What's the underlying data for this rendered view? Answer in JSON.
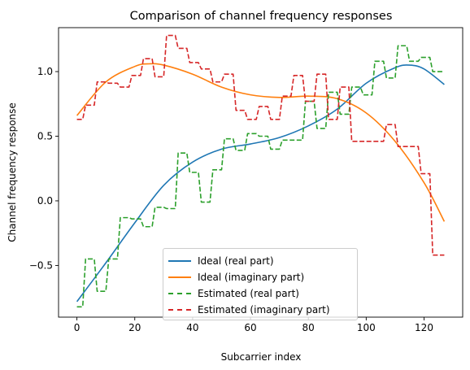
{
  "chart_data": {
    "type": "line",
    "title": "Comparison of channel frequency responses",
    "xlabel": "Subcarrier index",
    "ylabel": "Channel frequency response",
    "xlim": [
      -6.35,
      133.35
    ],
    "ylim": [
      -0.9,
      1.34
    ],
    "xticks": [
      0,
      20,
      40,
      60,
      80,
      100,
      120
    ],
    "yticks": [
      -0.5,
      0.0,
      0.5,
      1.0
    ],
    "ytick_labels": [
      "−0.5",
      "0.0",
      "0.5",
      "1.0"
    ],
    "grid": false,
    "legend_position": "lower center",
    "series": [
      {
        "name": "Ideal (real part)",
        "color": "#1f77b4",
        "style": "solid",
        "x": [
          0,
          10,
          20,
          30,
          40,
          50,
          60,
          70,
          80,
          90,
          100,
          110,
          115,
          120,
          127
        ],
        "y": [
          -0.78,
          -0.48,
          -0.17,
          0.12,
          0.3,
          0.4,
          0.44,
          0.49,
          0.58,
          0.71,
          0.91,
          1.03,
          1.05,
          1.02,
          0.9
        ]
      },
      {
        "name": "Ideal (imaginary part)",
        "color": "#ff7f0e",
        "style": "solid",
        "x": [
          0,
          10,
          20,
          25,
          30,
          40,
          50,
          60,
          70,
          80,
          90,
          100,
          110,
          120,
          127
        ],
        "y": [
          0.66,
          0.92,
          1.04,
          1.06,
          1.05,
          0.98,
          0.88,
          0.82,
          0.8,
          0.81,
          0.79,
          0.68,
          0.46,
          0.14,
          -0.16
        ]
      },
      {
        "name": "Estimated (real part)",
        "color": "#2ca02c",
        "style": "dashed",
        "x": [
          0,
          2,
          3,
          6,
          7,
          10,
          11,
          14,
          15,
          18,
          19,
          22,
          23,
          26,
          27,
          30,
          31,
          34,
          35,
          38,
          39,
          42,
          43,
          46,
          47,
          50,
          51,
          54,
          55,
          58,
          59,
          62,
          63,
          66,
          67,
          70,
          71,
          74,
          75,
          78,
          79,
          82,
          83,
          86,
          87,
          90,
          91,
          94,
          95,
          98,
          99,
          102,
          103,
          106,
          107,
          110,
          111,
          114,
          115,
          118,
          119,
          122,
          123,
          127
        ],
        "y": [
          -0.82,
          -0.82,
          -0.45,
          -0.45,
          -0.7,
          -0.7,
          -0.45,
          -0.45,
          -0.13,
          -0.13,
          -0.14,
          -0.14,
          -0.2,
          -0.2,
          -0.05,
          -0.05,
          -0.06,
          -0.06,
          0.37,
          0.37,
          0.22,
          0.22,
          -0.01,
          -0.01,
          0.24,
          0.24,
          0.48,
          0.48,
          0.39,
          0.39,
          0.52,
          0.52,
          0.5,
          0.5,
          0.4,
          0.4,
          0.47,
          0.47,
          0.47,
          0.47,
          0.77,
          0.77,
          0.56,
          0.56,
          0.84,
          0.84,
          0.67,
          0.67,
          0.88,
          0.88,
          0.82,
          0.82,
          1.08,
          1.08,
          0.95,
          0.95,
          1.2,
          1.2,
          1.08,
          1.08,
          1.11,
          1.11,
          1.0,
          1.0
        ]
      },
      {
        "name": "Estimated (imaginary part)",
        "color": "#d62728",
        "style": "dashed",
        "x": [
          0,
          2,
          3,
          6,
          7,
          10,
          11,
          14,
          15,
          18,
          19,
          22,
          23,
          26,
          27,
          30,
          31,
          34,
          35,
          38,
          39,
          42,
          43,
          46,
          47,
          50,
          51,
          54,
          55,
          58,
          59,
          62,
          63,
          66,
          67,
          70,
          71,
          74,
          75,
          78,
          79,
          82,
          83,
          86,
          87,
          90,
          91,
          94,
          95,
          98,
          99,
          102,
          103,
          106,
          107,
          110,
          111,
          114,
          115,
          118,
          119,
          122,
          123,
          127
        ],
        "y": [
          0.63,
          0.63,
          0.74,
          0.74,
          0.92,
          0.92,
          0.91,
          0.91,
          0.88,
          0.88,
          0.97,
          0.97,
          1.1,
          1.1,
          0.96,
          0.96,
          1.28,
          1.28,
          1.18,
          1.18,
          1.07,
          1.07,
          1.02,
          1.02,
          0.92,
          0.92,
          0.98,
          0.98,
          0.7,
          0.7,
          0.63,
          0.63,
          0.73,
          0.73,
          0.63,
          0.63,
          0.81,
          0.81,
          0.97,
          0.97,
          0.77,
          0.77,
          0.98,
          0.98,
          0.63,
          0.63,
          0.88,
          0.88,
          0.46,
          0.46,
          0.46,
          0.46,
          0.46,
          0.46,
          0.59,
          0.59,
          0.42,
          0.42,
          0.42,
          0.42,
          0.21,
          0.21,
          -0.42,
          -0.42
        ]
      }
    ]
  }
}
